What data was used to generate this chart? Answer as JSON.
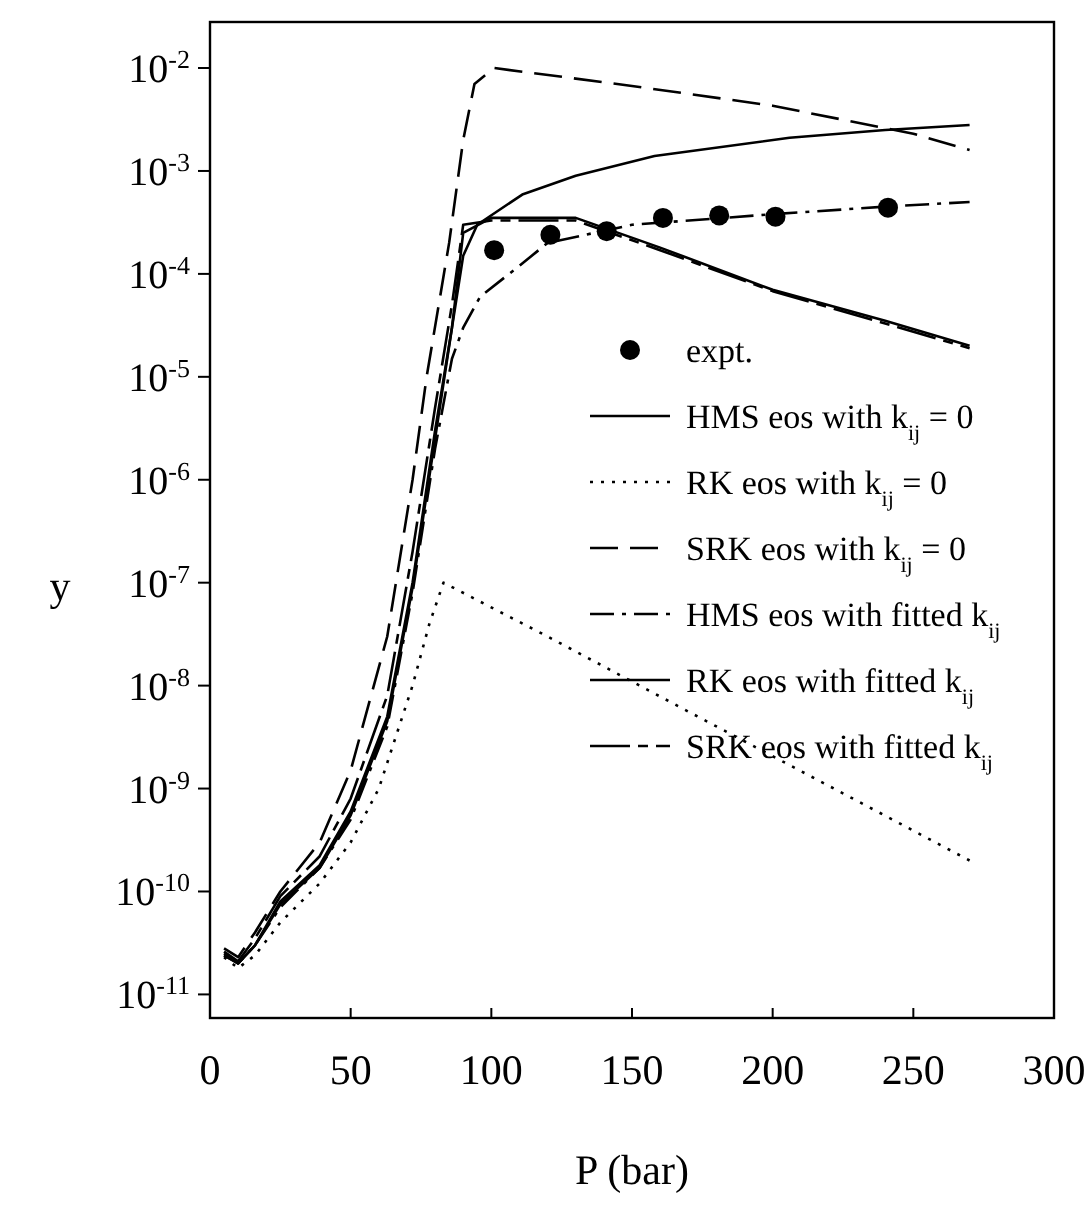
{
  "chart_data": {
    "type": "line",
    "xlabel": "P (bar)",
    "ylabel": "y",
    "log": "y",
    "grid": false,
    "legend": "right",
    "xlim": [
      0,
      300
    ],
    "xticks": [
      0,
      50,
      100,
      150,
      200,
      250,
      300
    ],
    "ylim": [
      5.9e-12,
      0.028
    ],
    "yticks": [
      {
        "value": 0.01,
        "label": "10$^{-2}$"
      },
      {
        "value": 0.001,
        "label": "10$^{-3}$"
      },
      {
        "value": 0.0001,
        "label": "10$^{-4}$"
      },
      {
        "value": 1e-05,
        "label": "10$^{-5}$"
      },
      {
        "value": 1e-06,
        "label": "10$^{-6}$"
      },
      {
        "value": 1e-07,
        "label": "10$^{-7}$"
      },
      {
        "value": 1e-08,
        "label": "10$^{-8}$"
      },
      {
        "value": 1e-09,
        "label": "10$^{-9}$"
      },
      {
        "value": 1e-10,
        "label": "10$^{-10}$"
      },
      {
        "value": 1e-11,
        "label": "10$^{-11}$"
      }
    ],
    "series": [
      {
        "name": "expt.",
        "type": "scatter",
        "marker": "circle",
        "color": "#000000",
        "x": [
          101,
          121,
          141,
          161,
          181,
          201,
          241
        ],
        "values": [
          0.00017,
          0.00024,
          0.00026,
          0.00035,
          0.00037,
          0.00036,
          0.00044
        ]
      },
      {
        "name": "HMS eos with k$_{ij}$ = 0",
        "line_style": "solid",
        "color": "#000000",
        "x": [
          5,
          10,
          16,
          25,
          39,
          50,
          63,
          72,
          80,
          86,
          90,
          95,
          111,
          130,
          158,
          206,
          240,
          270
        ],
        "values": [
          2.5e-11,
          2e-11,
          3e-11,
          8e-11,
          1.8e-10,
          6e-10,
          5e-09,
          1e-07,
          3e-06,
          3e-05,
          0.00015,
          0.0003,
          0.00059,
          0.0009,
          0.0014,
          0.0021,
          0.0025,
          0.0028
        ]
      },
      {
        "name": "RK eos with k$_{ij}$ = 0",
        "line_style": "dotted",
        "color": "#000000",
        "x": [
          5,
          10,
          16,
          25,
          39,
          50,
          60,
          72,
          78,
          83,
          120,
          170,
          230,
          270
        ],
        "values": [
          2.3e-11,
          1.8e-11,
          2.4e-11,
          5e-11,
          1.2e-10,
          3e-10,
          1e-09,
          1e-08,
          4e-08,
          1e-07,
          3e-08,
          5.6e-09,
          7.6e-10,
          2e-10
        ]
      },
      {
        "name": "SRK eos with k$_{ij}$ = 0",
        "line_style": "dashed",
        "color": "#000000",
        "x": [
          5,
          10,
          16,
          25,
          39,
          50,
          63,
          72,
          77,
          85,
          90,
          94,
          101,
          150,
          200,
          250,
          270
        ],
        "values": [
          2.8e-11,
          2.3e-11,
          4e-11,
          1e-10,
          3e-10,
          1.5e-09,
          3e-08,
          1e-06,
          1e-05,
          0.0002,
          0.002,
          0.007,
          0.01,
          0.0067,
          0.0043,
          0.0023,
          0.0016
        ]
      },
      {
        "name": "HMS eos with fitted k$_{ij}$",
        "line_style": "dashdot",
        "color": "#000000",
        "x": [
          5,
          10,
          16,
          25,
          39,
          50,
          63,
          72,
          80,
          86,
          90,
          96,
          110,
          120,
          150,
          200,
          240,
          270
        ],
        "values": [
          2.4e-11,
          2e-11,
          3e-11,
          7e-11,
          1.7e-10,
          5e-10,
          4e-09,
          8e-08,
          2e-06,
          1.5e-05,
          3e-05,
          6e-05,
          0.00012,
          0.0002,
          0.0003,
          0.00038,
          0.00045,
          0.0005
        ]
      },
      {
        "name": "RK eos with fitted k$_{ij}$",
        "line_style": "solid",
        "color": "#000000",
        "x": [
          5,
          10,
          16,
          25,
          39,
          50,
          63,
          72,
          80,
          86,
          90,
          100,
          130,
          160,
          200,
          240,
          270
        ],
        "values": [
          2.4e-11,
          2e-11,
          3e-11,
          7.5e-11,
          1.7e-10,
          5.5e-10,
          4.5e-09,
          9e-08,
          2.5e-06,
          3e-05,
          0.00025,
          0.00035,
          0.00035,
          0.00018,
          7e-05,
          3.5e-05,
          2e-05
        ]
      },
      {
        "name": "SRK eos with fitted k$_{ij}$",
        "line_style": "longdash",
        "color": "#000000",
        "x": [
          5,
          10,
          16,
          25,
          39,
          50,
          63,
          72,
          80,
          86,
          90,
          100,
          130,
          160,
          200,
          240,
          270
        ],
        "values": [
          2.6e-11,
          2.1e-11,
          3.5e-11,
          9e-11,
          2.2e-10,
          8e-10,
          8e-09,
          2e-07,
          5e-06,
          5e-05,
          0.0003,
          0.00033,
          0.00033,
          0.00017,
          6.8e-05,
          3.3e-05,
          1.9e-05
        ]
      }
    ]
  }
}
